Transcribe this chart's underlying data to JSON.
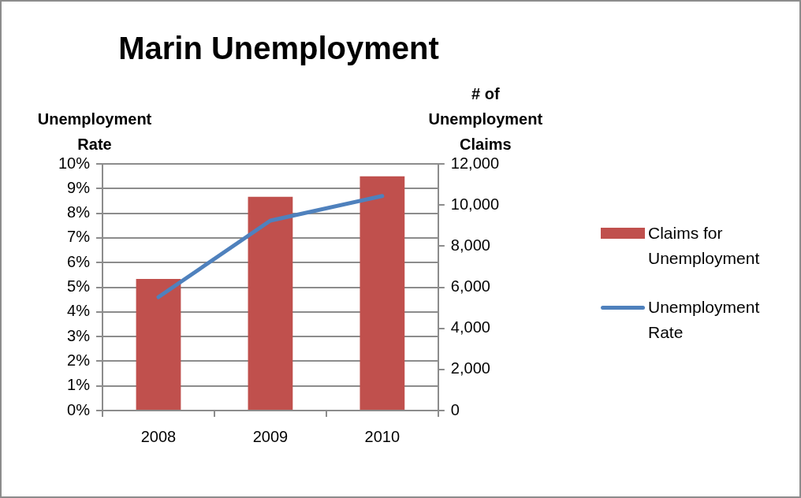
{
  "chart_data": {
    "type": "bar",
    "title": "Marin Unemployment",
    "ylabel": "Unemployment Rate",
    "y2label": "# of Unemployment Claims",
    "categories": [
      "2008",
      "2009",
      "2010"
    ],
    "series": [
      {
        "name": "Claims for Unemployment",
        "axis": "y2",
        "color": "#c0504d",
        "values": [
          6400,
          10400,
          11400
        ]
      },
      {
        "name": "Unemployment Rate",
        "type": "line",
        "color": "#4f81bd",
        "values": [
          4.6,
          7.7,
          8.7
        ],
        "marker": "none"
      }
    ],
    "ylim": [
      0,
      10
    ],
    "yticks": [
      {
        "value": 0,
        "label": "0%"
      },
      {
        "value": 1,
        "label": "1%"
      },
      {
        "value": 2,
        "label": "2%"
      },
      {
        "value": 3,
        "label": "3%"
      },
      {
        "value": 4,
        "label": "4%"
      },
      {
        "value": 5,
        "label": "5%"
      },
      {
        "value": 6,
        "label": "6%"
      },
      {
        "value": 7,
        "label": "7%"
      },
      {
        "value": 8,
        "label": "8%"
      },
      {
        "value": 9,
        "label": "9%"
      },
      {
        "value": 10,
        "label": "10%"
      }
    ],
    "y2lim": [
      0,
      12000
    ],
    "y2ticks": [
      {
        "value": 0,
        "label": "0"
      },
      {
        "value": 2000,
        "label": "2,000"
      },
      {
        "value": 4000,
        "label": "4,000"
      },
      {
        "value": 6000,
        "label": "6,000"
      },
      {
        "value": 8000,
        "label": "8,000"
      },
      {
        "value": 10000,
        "label": "10,000"
      },
      {
        "value": 12000,
        "label": "12,000"
      }
    ],
    "grid": "y",
    "legend": "right"
  }
}
